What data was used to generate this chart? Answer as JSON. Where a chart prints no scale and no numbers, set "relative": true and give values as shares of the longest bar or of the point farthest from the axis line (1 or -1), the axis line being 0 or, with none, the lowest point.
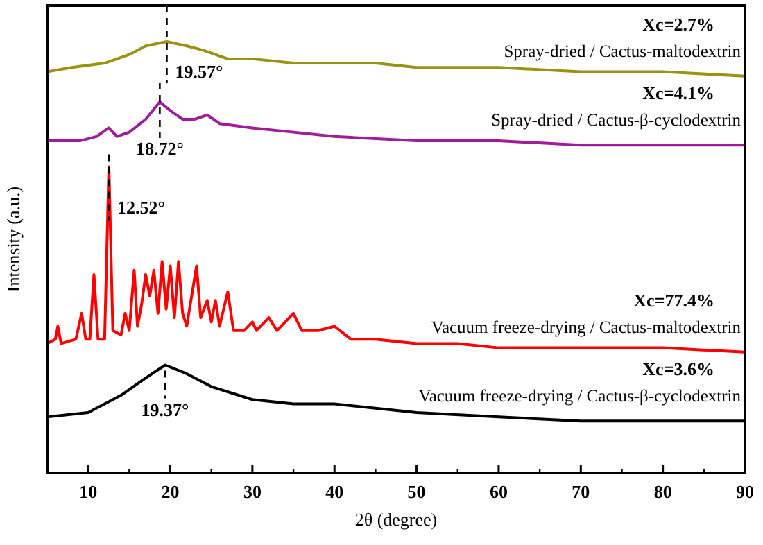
{
  "chart_data": {
    "type": "line",
    "relative": true,
    "xlabel": "2θ (degree)",
    "ylabel": "Intensity (a.u.)",
    "xlim": [
      5,
      90
    ],
    "xticks": [
      10,
      20,
      30,
      40,
      50,
      60,
      70,
      80,
      90
    ],
    "grid": false,
    "marker": "none",
    "line_style": "solid",
    "series": [
      {
        "name": "Spray-dried / Cactus-maltodextrin",
        "color": "#9b9214",
        "x": [
          5,
          8,
          12,
          15,
          17,
          19.57,
          22,
          24,
          27,
          30,
          35,
          40,
          45,
          50,
          60,
          70,
          80,
          90
        ],
        "values": [
          0.93,
          0.94,
          0.95,
          0.97,
          0.99,
          1.0,
          0.99,
          0.98,
          0.96,
          0.96,
          0.95,
          0.95,
          0.95,
          0.94,
          0.94,
          0.93,
          0.93,
          0.92
        ]
      },
      {
        "name": "Spray-dried / Cactus-β-cyclodextrin",
        "color": "#a01c9c",
        "x": [
          5,
          9,
          11,
          12.5,
          13.5,
          15,
          17,
          18.72,
          20,
          21.5,
          23,
          24.5,
          26,
          30,
          35,
          40,
          50,
          60,
          70,
          90
        ],
        "values": [
          0.77,
          0.77,
          0.78,
          0.8,
          0.78,
          0.79,
          0.82,
          0.86,
          0.84,
          0.82,
          0.82,
          0.83,
          0.81,
          0.8,
          0.79,
          0.78,
          0.77,
          0.77,
          0.76,
          0.76
        ]
      },
      {
        "name": "Vacuum freeze-drying / Cactus-maltodextrin",
        "color": "#ff0000",
        "x": [
          5,
          6,
          6.3,
          6.7,
          8.5,
          9.2,
          9.7,
          10.2,
          10.7,
          11.2,
          12,
          12.52,
          13,
          14,
          14.5,
          15,
          15.6,
          16,
          16.5,
          17,
          17.5,
          18,
          18.5,
          19,
          19.5,
          20,
          20.5,
          21,
          21.5,
          22,
          23.2,
          23.7,
          24.5,
          25,
          25.5,
          26,
          27,
          27.7,
          29,
          30,
          30.5,
          32,
          33,
          35,
          36,
          38,
          40,
          42,
          45,
          50,
          55,
          60,
          70,
          80,
          90
        ],
        "values": [
          0.3,
          0.31,
          0.34,
          0.3,
          0.31,
          0.37,
          0.31,
          0.31,
          0.46,
          0.31,
          0.31,
          0.71,
          0.33,
          0.32,
          0.37,
          0.33,
          0.47,
          0.34,
          0.39,
          0.46,
          0.41,
          0.47,
          0.37,
          0.49,
          0.38,
          0.48,
          0.36,
          0.49,
          0.37,
          0.34,
          0.48,
          0.36,
          0.4,
          0.35,
          0.4,
          0.34,
          0.42,
          0.33,
          0.33,
          0.35,
          0.33,
          0.36,
          0.33,
          0.37,
          0.33,
          0.33,
          0.34,
          0.31,
          0.31,
          0.3,
          0.3,
          0.29,
          0.29,
          0.29,
          0.28
        ]
      },
      {
        "name": "Vacuum freeze-drying / Cactus-β-cyclodextrin",
        "color": "#000000",
        "x": [
          5,
          10,
          14,
          17,
          19.37,
          22,
          25,
          30,
          35,
          40,
          45,
          50,
          60,
          70,
          80,
          90
        ],
        "values": [
          0.13,
          0.14,
          0.18,
          0.22,
          0.25,
          0.23,
          0.2,
          0.17,
          0.16,
          0.16,
          0.15,
          0.14,
          0.13,
          0.12,
          0.12,
          0.12
        ]
      }
    ],
    "annotations": [
      "Xc=2.7%",
      "Xc=4.1%",
      "Xc=77.4%",
      "Xc=3.6%",
      {
        "text": "19.57°",
        "x": 19.57,
        "y": 1.0
      },
      {
        "text": "18.72°",
        "x": 18.72,
        "y": 0.86
      },
      {
        "text": "12.52°",
        "x": 12.52,
        "y": 0.71
      },
      {
        "text": "19.37°",
        "x": 19.37,
        "y": 0.25
      }
    ]
  }
}
